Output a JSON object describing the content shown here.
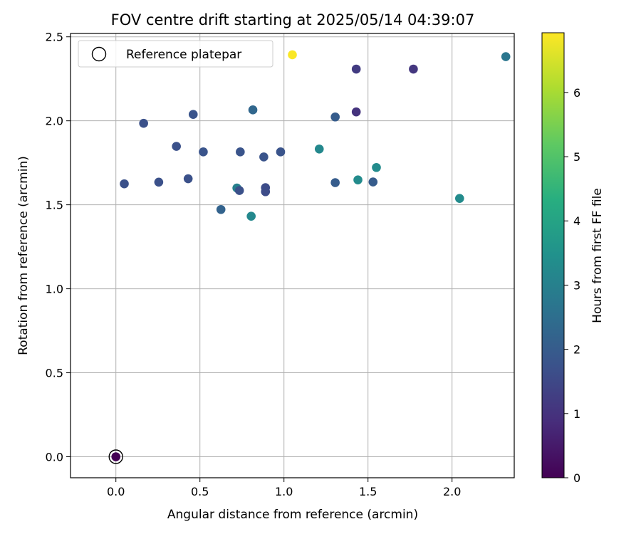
{
  "chart_data": {
    "type": "scatter",
    "title": "FOV centre drift starting at 2025/05/14 04:39:07",
    "xlabel": "Angular distance from reference (arcmin)",
    "ylabel": "Rotation from reference (arcmin)",
    "xlim": [
      -0.27,
      2.37
    ],
    "ylim": [
      -0.125,
      2.52
    ],
    "xticks": [
      "0.0",
      "0.5",
      "1.0",
      "1.5",
      "2.0"
    ],
    "xtick_values": [
      0,
      0.5,
      1.0,
      1.5,
      2.0
    ],
    "yticks": [
      "0.0",
      "0.5",
      "1.0",
      "1.5",
      "2.0",
      "2.5"
    ],
    "ytick_values": [
      0,
      0.5,
      1.0,
      1.5,
      2.0,
      2.5
    ],
    "grid": true,
    "legend": {
      "placement": "top-left",
      "entries": [
        {
          "label": "Reference platepar",
          "marker": "open-circle"
        }
      ]
    },
    "colorbar": {
      "label": "Hours from first FF file",
      "colormap": "viridis",
      "range": [
        0,
        6.93
      ],
      "ticks": [
        "0",
        "1",
        "2",
        "3",
        "4",
        "5",
        "6"
      ],
      "tick_values": [
        0,
        1,
        2,
        3,
        4,
        5,
        6
      ]
    },
    "reference_point": {
      "x": 0.0,
      "y": 0.0
    },
    "points": [
      {
        "x": 0.0,
        "y": 0.0,
        "c": 0.0
      },
      {
        "x": 0.05,
        "y": 1.625,
        "c": 1.7
      },
      {
        "x": 0.165,
        "y": 1.985,
        "c": 1.7
      },
      {
        "x": 0.255,
        "y": 1.635,
        "c": 1.7
      },
      {
        "x": 0.36,
        "y": 1.848,
        "c": 1.7
      },
      {
        "x": 0.43,
        "y": 1.655,
        "c": 1.7
      },
      {
        "x": 0.46,
        "y": 2.038,
        "c": 1.8
      },
      {
        "x": 0.52,
        "y": 1.815,
        "c": 1.8
      },
      {
        "x": 0.625,
        "y": 1.472,
        "c": 2.2
      },
      {
        "x": 0.72,
        "y": 1.6,
        "c": 3.0
      },
      {
        "x": 0.735,
        "y": 1.585,
        "c": 1.7
      },
      {
        "x": 0.74,
        "y": 1.815,
        "c": 1.8
      },
      {
        "x": 0.805,
        "y": 1.432,
        "c": 3.2
      },
      {
        "x": 0.815,
        "y": 2.065,
        "c": 2.3
      },
      {
        "x": 0.88,
        "y": 1.785,
        "c": 1.8
      },
      {
        "x": 0.89,
        "y": 1.602,
        "c": 1.6
      },
      {
        "x": 0.89,
        "y": 1.578,
        "c": 1.6
      },
      {
        "x": 0.98,
        "y": 1.815,
        "c": 1.8
      },
      {
        "x": 1.05,
        "y": 2.393,
        "c": 6.9
      },
      {
        "x": 1.21,
        "y": 1.832,
        "c": 3.2
      },
      {
        "x": 1.305,
        "y": 2.023,
        "c": 2.0
      },
      {
        "x": 1.305,
        "y": 1.632,
        "c": 2.0
      },
      {
        "x": 1.43,
        "y": 2.308,
        "c": 1.2
      },
      {
        "x": 1.43,
        "y": 2.053,
        "c": 1.0
      },
      {
        "x": 1.44,
        "y": 1.648,
        "c": 3.3
      },
      {
        "x": 1.53,
        "y": 1.636,
        "c": 2.0
      },
      {
        "x": 1.55,
        "y": 1.722,
        "c": 3.3
      },
      {
        "x": 1.77,
        "y": 2.308,
        "c": 1.1
      },
      {
        "x": 2.045,
        "y": 1.538,
        "c": 3.3
      },
      {
        "x": 2.32,
        "y": 2.382,
        "c": 2.7
      }
    ]
  }
}
